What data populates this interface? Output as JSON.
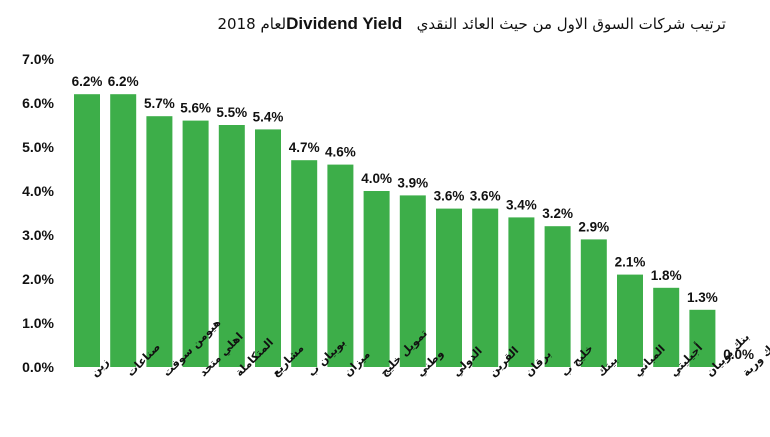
{
  "chart_data": {
    "type": "bar",
    "title": {
      "arabic": "ترتيب شركات السوق الاول من حيث العائد النقدي",
      "english": "Dividend Yield",
      "suffix": "لعام 2018"
    },
    "categories": [
      "زين",
      "صناعات",
      "هيومن سوفت",
      "اهلي متحد",
      "المتكاملة",
      "مشاريع",
      "بوبيان ب",
      "ميزان",
      "تمويل خليج",
      "وطني",
      "الدولي",
      "القرين",
      "برقان",
      "خليج ب",
      "بيتك",
      "المباني",
      "أجيليتي",
      "بنك بوبيان",
      "بنك وربة"
    ],
    "values": [
      6.2,
      6.2,
      5.7,
      5.6,
      5.5,
      5.4,
      4.7,
      4.6,
      4.0,
      3.9,
      3.6,
      3.6,
      3.4,
      3.2,
      2.9,
      2.1,
      1.8,
      1.3,
      0.0
    ],
    "labels": [
      "6.2%",
      "6.2%",
      "5.7%",
      "5.6%",
      "5.5%",
      "5.4%",
      "4.7%",
      "4.6%",
      "4.0%",
      "3.9%",
      "3.6%",
      "3.6%",
      "3.4%",
      "3.2%",
      "2.9%",
      "2.1%",
      "1.8%",
      "1.3%",
      "0.0%"
    ],
    "yticks": [
      "0.0%",
      "1.0%",
      "2.0%",
      "3.0%",
      "4.0%",
      "5.0%",
      "6.0%",
      "7.0%"
    ],
    "ylim": [
      0,
      7
    ],
    "bar_color": "#3dae49",
    "grid": false,
    "legend": "none"
  }
}
